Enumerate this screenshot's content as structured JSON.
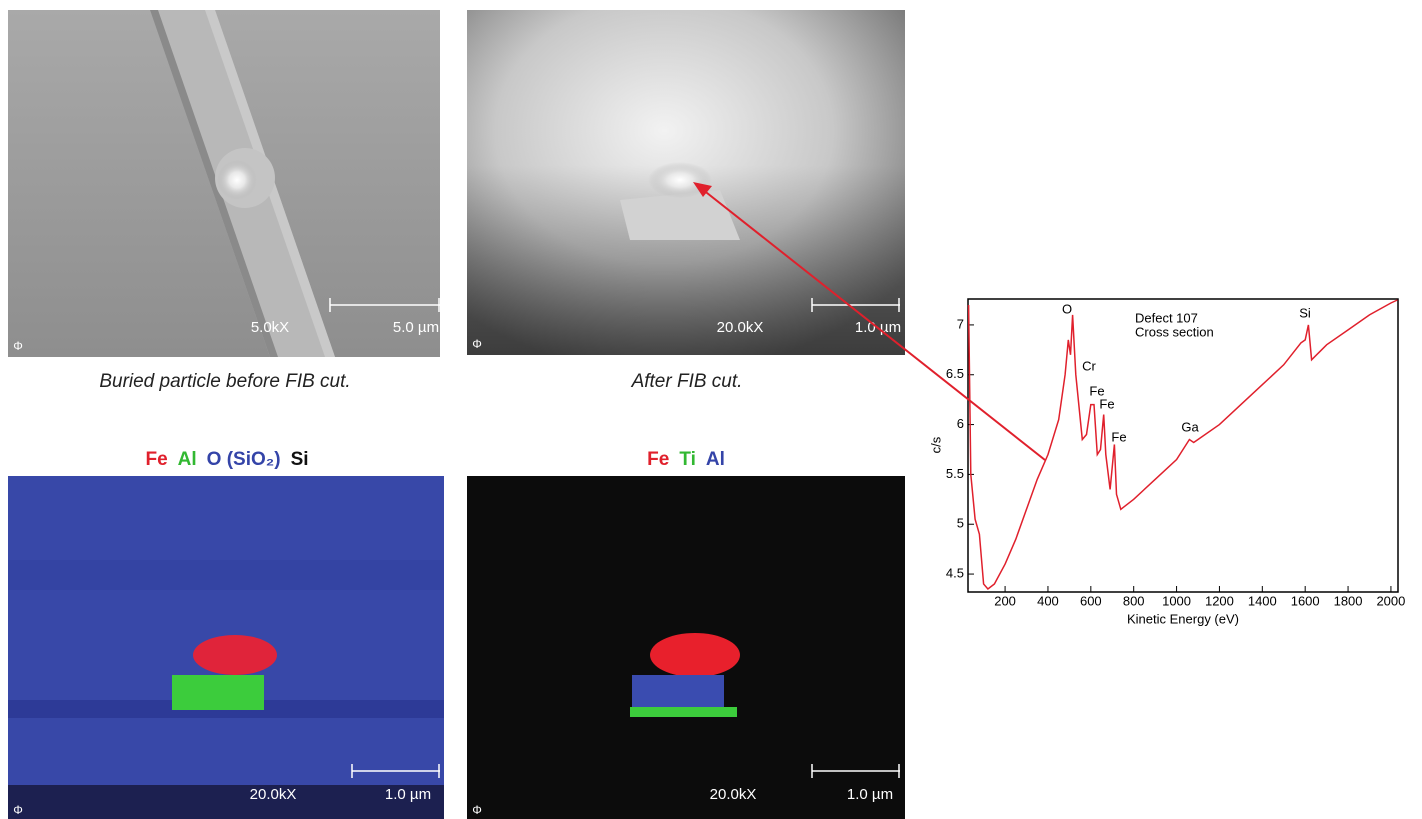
{
  "logo": "Φ",
  "panels": [
    {
      "magnification": "5.0kX",
      "scale": "5.0 µm",
      "caption": "Buried particle before FIB cut."
    },
    {
      "magnification": "20.0kX",
      "scale": "1.0 µm",
      "caption": "After FIB cut."
    },
    {
      "magnification": "20.0kX",
      "scale": "1.0 µm",
      "elements": [
        "Fe",
        "Al",
        "O (SiO₂)",
        "Si"
      ]
    },
    {
      "magnification": "20.0kX",
      "scale": "1.0 µm",
      "elements": [
        "Fe",
        "Ti",
        "Al"
      ]
    }
  ],
  "chart_data": {
    "type": "line",
    "x_label": "Kinetic Energy (eV)",
    "y_label": "c/s",
    "annotations": [
      "Defect 107",
      "Cross section",
      "O",
      "Cr",
      "Fe",
      "Fe",
      "Fe",
      "Ga",
      "Si"
    ],
    "xlim": [
      27,
      2033
    ],
    "ylim": [
      4.32,
      7.26
    ],
    "xticks": [
      200,
      400,
      600,
      800,
      1000,
      1200,
      1400,
      1600,
      1800,
      2000
    ],
    "yticks": [
      4.5,
      5,
      5.5,
      6,
      6.5,
      7
    ],
    "series": [
      {
        "color": "#e0202c",
        "x": [
          30,
          40,
          60,
          80,
          100,
          120,
          150,
          200,
          250,
          300,
          350,
          400,
          450,
          480,
          495,
          505,
          515,
          530,
          560,
          580,
          600,
          615,
          630,
          645,
          660,
          670,
          690,
          710,
          720,
          740,
          800,
          900,
          1000,
          1060,
          1080,
          1100,
          1200,
          1300,
          1400,
          1500,
          1580,
          1600,
          1615,
          1630,
          1700,
          1800,
          1900,
          2000,
          2030
        ],
        "values": [
          7.2,
          5.5,
          5.05,
          4.9,
          4.4,
          4.35,
          4.4,
          4.6,
          4.85,
          5.15,
          5.45,
          5.7,
          6.05,
          6.5,
          6.85,
          6.7,
          7.1,
          6.5,
          5.85,
          5.9,
          6.2,
          6.2,
          5.7,
          5.75,
          6.1,
          5.7,
          5.35,
          5.8,
          5.3,
          5.15,
          5.25,
          5.45,
          5.65,
          5.85,
          5.82,
          5.85,
          6.0,
          6.2,
          6.4,
          6.6,
          6.82,
          6.85,
          7.0,
          6.65,
          6.8,
          6.95,
          7.1,
          7.22,
          7.25
        ]
      }
    ]
  }
}
